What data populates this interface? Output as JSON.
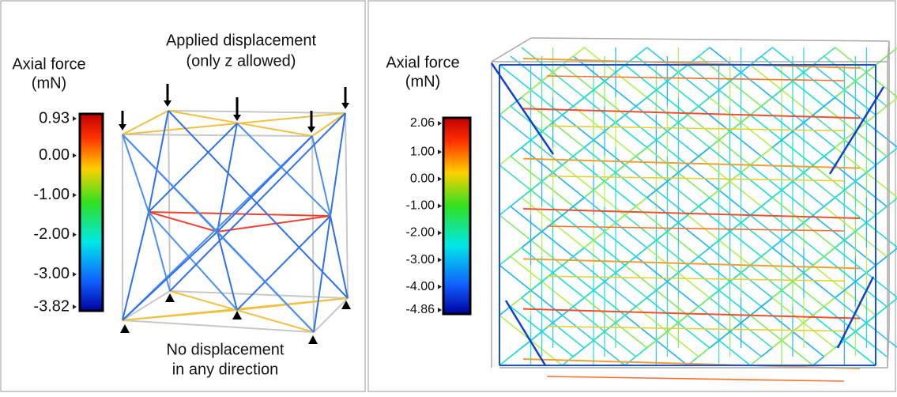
{
  "left": {
    "colorbar": {
      "title": [
        "Axial force",
        "(mN)"
      ],
      "ticks": [
        {
          "value": 0.93,
          "label": "0.93"
        },
        {
          "value": 0,
          "label": "0.00"
        },
        {
          "value": -1,
          "label": "-1.00"
        },
        {
          "value": -2,
          "label": "-2.00"
        },
        {
          "value": -3,
          "label": "-3.00"
        },
        {
          "value": -3.82,
          "label": "-3.82"
        }
      ]
    },
    "top_note": [
      "Applied displacement",
      "(only z allowed)"
    ],
    "bottom_note": [
      "No displacement",
      "in any direction"
    ]
  },
  "right": {
    "colorbar": {
      "title": [
        "Axial force",
        "(mN)"
      ],
      "ticks": [
        {
          "value": 2.06,
          "label": "2.06"
        },
        {
          "value": 1,
          "label": "1.00"
        },
        {
          "value": 0,
          "label": "0.00"
        },
        {
          "value": -1,
          "label": "-1.00"
        },
        {
          "value": -2,
          "label": "-2.00"
        },
        {
          "value": -3,
          "label": "-3.00"
        },
        {
          "value": -4,
          "label": "-4.00"
        },
        {
          "value": -4.86,
          "label": "-4.86"
        }
      ]
    }
  }
}
